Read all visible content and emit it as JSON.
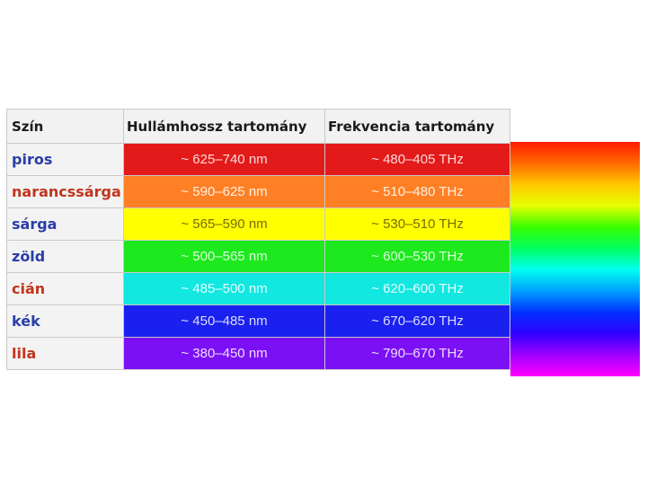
{
  "table": {
    "headers": [
      "Szín",
      "Hullámhossz tartomány",
      "Frekvencia tartomány"
    ],
    "rows": [
      {
        "name": "piros",
        "name_color": "#2a3ea8",
        "wavelength": "~ 625–740 nm",
        "frequency": "~ 480–405 THz",
        "bg": "#e21a1a",
        "text_color": "#ffd9d9"
      },
      {
        "name": "narancssárga",
        "name_color": "#c0351d",
        "wavelength": "~ 590–625 nm",
        "frequency": "~ 510–480 THz",
        "bg": "#ff7f24",
        "text_color": "#fff1e4"
      },
      {
        "name": "sárga",
        "name_color": "#2a3ea8",
        "wavelength": "~ 565–590 nm",
        "frequency": "~ 530–510 THz",
        "bg": "#ffff00",
        "text_color": "#7a6d00"
      },
      {
        "name": "zöld",
        "name_color": "#2a3ea8",
        "wavelength": "~ 500–565 nm",
        "frequency": "~ 600–530 THz",
        "bg": "#1ee81e",
        "text_color": "#d9ffd9"
      },
      {
        "name": "cián",
        "name_color": "#c0351d",
        "wavelength": "~ 485–500 nm",
        "frequency": "~ 620–600 THz",
        "bg": "#12e7e0",
        "text_color": "#e4ffff"
      },
      {
        "name": "kék",
        "name_color": "#2a3ea8",
        "wavelength": "~ 450–485 nm",
        "frequency": "~ 670–620 THz",
        "bg": "#1a20ee",
        "text_color": "#dcdcff"
      },
      {
        "name": "lila",
        "name_color": "#c0351d",
        "wavelength": "~ 380–450 nm",
        "frequency": "~ 790–670 THz",
        "bg": "#7b10f4",
        "text_color": "#eedcff"
      }
    ]
  },
  "spectrum_gradient": [
    "#ff1a00",
    "#ff6a00",
    "#ffc800",
    "#e6ff00",
    "#38ff00",
    "#00ff60",
    "#00fff0",
    "#00a0ff",
    "#0030ff",
    "#3000ff",
    "#a000ff",
    "#ff00ff"
  ]
}
